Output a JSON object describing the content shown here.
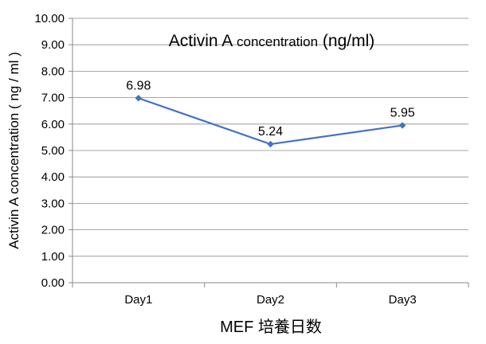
{
  "chart_data": {
    "type": "line",
    "title_main": "Activin A",
    "title_rest": " concentration",
    "title_unit": " (ng/ml)",
    "ylabel": "Activin A concentration ( ng / ml )",
    "xlabel": "MEF 培養日数",
    "categories": [
      "Day1",
      "Day2",
      "Day3"
    ],
    "series": [
      {
        "values": [
          6.98,
          5.24,
          5.95
        ],
        "color": "#4472c4"
      }
    ],
    "data_labels": [
      "6.98",
      "5.24",
      "5.95"
    ],
    "y_ticks": [
      "0.00",
      "1.00",
      "2.00",
      "3.00",
      "4.00",
      "5.00",
      "6.00",
      "7.00",
      "8.00",
      "9.00",
      "10.00"
    ],
    "ylim": [
      0,
      10
    ],
    "grid": true,
    "legend": "none"
  }
}
